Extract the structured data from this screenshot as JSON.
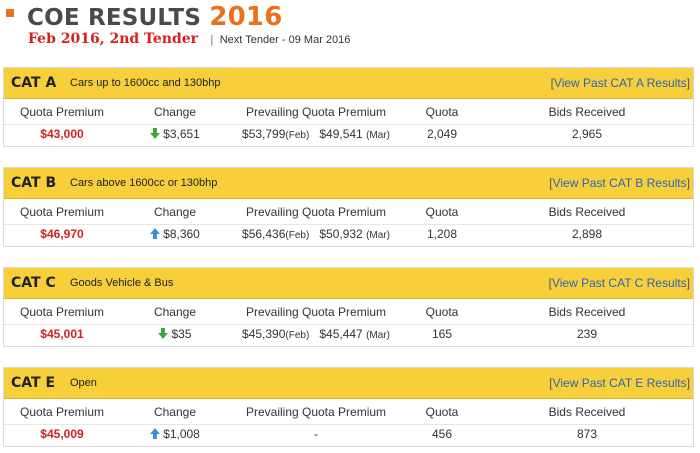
{
  "header": {
    "title": "COE RESULTS",
    "year": "2016",
    "tender": "Feb 2016, 2nd Tender",
    "separator": "|",
    "next_tender": "Next Tender - 09 Mar 2016"
  },
  "columns": {
    "quota_premium": "Quota Premium",
    "change": "Change",
    "prevailing": "Prevailing Quota Premium",
    "quota": "Quota",
    "bids": "Bids Received"
  },
  "colors": {
    "accent": "#e8721c",
    "category_bar": "#f6cf3a",
    "premium_red": "#d02020",
    "arrow_down_green": "#3caa3c",
    "arrow_up_blue": "#3a8fd8",
    "link_blue": "#2d67b3"
  },
  "categories": [
    {
      "name": "CAT A",
      "description": "Cars up to 1600cc and 130bhp",
      "link_open": "[",
      "link": "View Past CAT A Results",
      "link_close": "]",
      "premium": "$43,000",
      "change_icon": "arrow-down-icon",
      "change": "$3,651",
      "prev_feb": "$53,799",
      "prev_feb_label": "(Feb)",
      "prev_mar": "$49,541",
      "prev_mar_label": "(Mar)",
      "quota": "2,049",
      "bids": "2,965"
    },
    {
      "name": "CAT B",
      "description": "Cars above 1600cc or 130bhp",
      "link_open": "[",
      "link": "View Past CAT B Results",
      "link_close": "]",
      "premium": "$46,970",
      "change_icon": "arrow-up-icon",
      "change": "$8,360",
      "prev_feb": "$56,436",
      "prev_feb_label": "(Feb)",
      "prev_mar": "$50,932",
      "prev_mar_label": "(Mar)",
      "quota": "1,208",
      "bids": "2,898"
    },
    {
      "name": "CAT C",
      "description": "Goods Vehicle & Bus",
      "link_open": "[",
      "link": "View Past CAT C Results",
      "link_close": "]",
      "premium": "$45,001",
      "change_icon": "arrow-down-icon",
      "change": "$35",
      "prev_feb": "$45,390",
      "prev_feb_label": "(Feb)",
      "prev_mar": "$45,447",
      "prev_mar_label": "(Mar)",
      "quota": "165",
      "bids": "239"
    },
    {
      "name": "CAT E",
      "description": "Open",
      "link_open": "[",
      "link": "View Past CAT E Results",
      "link_close": "]",
      "premium": "$45,009",
      "change_icon": "arrow-up-icon",
      "change": "$1,008",
      "prev_dash": "-",
      "quota": "456",
      "bids": "873"
    }
  ]
}
